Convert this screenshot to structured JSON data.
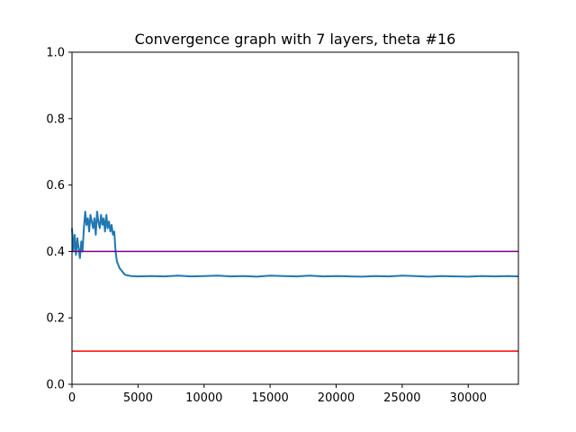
{
  "chart_data": {
    "type": "line",
    "title": "Convergence graph with 7 layers, theta #16",
    "xlabel": "",
    "ylabel": "",
    "xlim": [
      0,
      33800
    ],
    "ylim": [
      0.0,
      1.0
    ],
    "grid": false,
    "legend": "none",
    "x_ticks": [
      0,
      5000,
      10000,
      15000,
      20000,
      25000,
      30000
    ],
    "x_tick_labels": [
      "0",
      "5000",
      "10000",
      "15000",
      "20000",
      "25000",
      "30000"
    ],
    "y_ticks": [
      0.0,
      0.2,
      0.4,
      0.6,
      0.8,
      1.0
    ],
    "y_tick_labels": [
      "0.0",
      "0.2",
      "0.4",
      "0.6",
      "0.8",
      "1.0"
    ],
    "series": [
      {
        "color": "#1f77b4",
        "x": [
          0,
          100,
          200,
          300,
          400,
          500,
          600,
          700,
          800,
          900,
          1000,
          1100,
          1200,
          1300,
          1400,
          1500,
          1600,
          1700,
          1800,
          1900,
          2000,
          2100,
          2200,
          2300,
          2400,
          2500,
          2600,
          2700,
          2800,
          2900,
          3000,
          3100,
          3200,
          3300,
          3400,
          3500,
          3600,
          3700,
          3800,
          3900,
          4000,
          4200,
          4500,
          5000,
          6000,
          7000,
          8000,
          9000,
          10000,
          11000,
          12000,
          13000,
          14000,
          15000,
          16000,
          17000,
          18000,
          19000,
          20000,
          21000,
          22000,
          23000,
          24000,
          25000,
          26000,
          27000,
          28000,
          29000,
          30000,
          31000,
          32000,
          33000,
          33800
        ],
        "y": [
          0.47,
          0.4,
          0.45,
          0.39,
          0.44,
          0.41,
          0.38,
          0.43,
          0.4,
          0.47,
          0.52,
          0.48,
          0.5,
          0.46,
          0.51,
          0.49,
          0.47,
          0.5,
          0.45,
          0.52,
          0.49,
          0.47,
          0.51,
          0.48,
          0.5,
          0.46,
          0.51,
          0.47,
          0.49,
          0.46,
          0.48,
          0.45,
          0.46,
          0.4,
          0.37,
          0.36,
          0.35,
          0.345,
          0.34,
          0.335,
          0.33,
          0.328,
          0.326,
          0.325,
          0.326,
          0.325,
          0.327,
          0.325,
          0.326,
          0.327,
          0.325,
          0.326,
          0.324,
          0.327,
          0.326,
          0.325,
          0.327,
          0.325,
          0.326,
          0.325,
          0.324,
          0.326,
          0.325,
          0.327,
          0.326,
          0.324,
          0.326,
          0.325,
          0.324,
          0.326,
          0.325,
          0.326,
          0.325
        ]
      },
      {
        "color": "#800080",
        "x": [
          0,
          33800
        ],
        "y": [
          0.4,
          0.4
        ]
      },
      {
        "color": "#ff0000",
        "x": [
          0,
          33800
        ],
        "y": [
          0.1,
          0.1
        ]
      }
    ]
  }
}
